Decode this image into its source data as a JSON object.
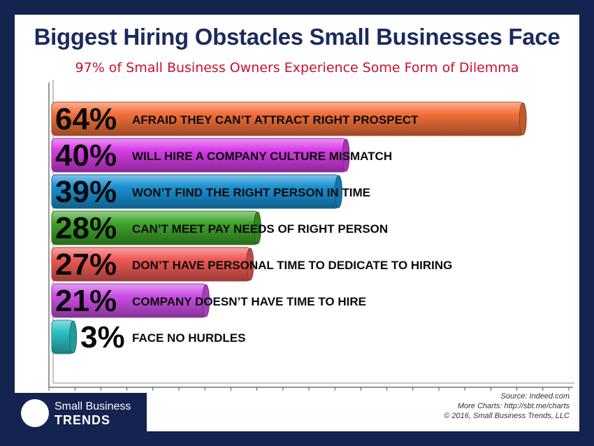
{
  "title": "Biggest Hiring Obstacles Small Businesses Face",
  "subtitle": "97% of Small Business Owners Experience Some Form of Dilemma",
  "chart_data": {
    "type": "bar",
    "orientation": "horizontal",
    "title": "Biggest Hiring Obstacles Small Businesses Face",
    "subtitle": "97% of Small Business Owners Experience Some Form of Dilemma",
    "xlim": [
      0,
      100
    ],
    "grid": false,
    "categories": [
      "AFRAID THEY CAN’T ATTRACT RIGHT PROSPECT",
      "WILL HIRE A COMPANY CULTURE MISMATCH",
      "WON’T FIND THE RIGHT PERSON IN TIME",
      "CAN’T MEET PAY NEEDS OF RIGHT PERSON",
      "DON’T HAVE PERSONAL TIME TO DEDICATE TO HIRING",
      "COMPANY DOESN’T HAVE TIME TO HIRE",
      "FACE NO HURDLES"
    ],
    "values": [
      64,
      40,
      39,
      28,
      27,
      21,
      3
    ],
    "value_labels": [
      "64%",
      "40%",
      "39%",
      "28%",
      "27%",
      "21%",
      "3%"
    ],
    "colors": [
      "#f2703a",
      "#d83ce8",
      "#1a92d4",
      "#3fa52a",
      "#ef5a55",
      "#cc4fe6",
      "#2cc1c3"
    ]
  },
  "footer": {
    "source": "Source: Indeed.com",
    "more": "More Charts: http://sbt.me/charts",
    "copyright": "© 2016, Small Business Trends, LLC"
  },
  "logo": {
    "line1": "Small Business",
    "line2": "TRENDS"
  }
}
